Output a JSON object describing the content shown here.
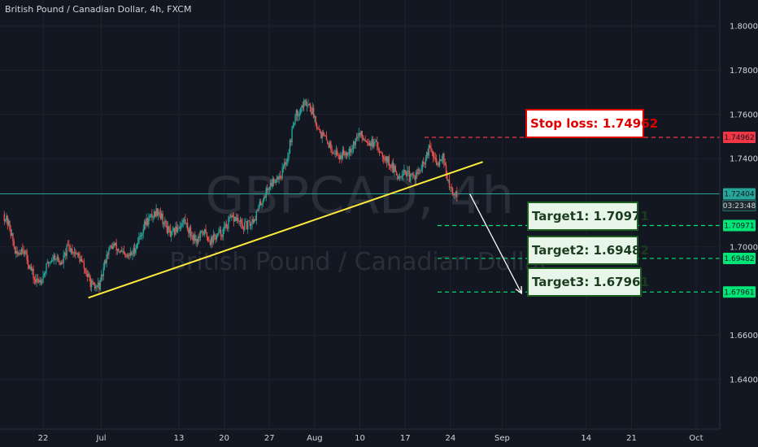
{
  "chart_data": {
    "type": "candlestick",
    "title": "British Pound / Canadian Dollar, 4h, FXCM",
    "watermark": {
      "symbol": "GBPCAD, 4h",
      "name": "British Pound / Canadian Dollar"
    },
    "ylim": [
      1.62,
      1.81
    ],
    "y_ticks": [
      {
        "value": 1.8,
        "label": "1.80000"
      },
      {
        "value": 1.78,
        "label": "1.78000"
      },
      {
        "value": 1.76,
        "label": "1.76000"
      },
      {
        "value": 1.74,
        "label": "1.74000"
      },
      {
        "value": 1.7,
        "label": "1.70000"
      },
      {
        "value": 1.66,
        "label": "1.66000"
      },
      {
        "value": 1.64,
        "label": "1.64000"
      }
    ],
    "x_ticks": [
      {
        "date": "2020-06-22",
        "label": "22"
      },
      {
        "date": "2020-07-01",
        "label": "Jul"
      },
      {
        "date": "2020-07-13",
        "label": "13"
      },
      {
        "date": "2020-07-20",
        "label": "20"
      },
      {
        "date": "2020-07-27",
        "label": "27"
      },
      {
        "date": "2020-08-03",
        "label": "Aug"
      },
      {
        "date": "2020-08-10",
        "label": "10"
      },
      {
        "date": "2020-08-17",
        "label": "17"
      },
      {
        "date": "2020-08-24",
        "label": "24"
      },
      {
        "date": "2020-09-01",
        "label": "Sep"
      },
      {
        "date": "2020-09-14",
        "label": "14"
      },
      {
        "date": "2020-09-21",
        "label": "21"
      },
      {
        "date": "2020-10-01",
        "label": "Oct"
      }
    ],
    "price_path": [
      [
        "2020-06-16",
        1.715
      ],
      [
        "2020-06-17",
        1.709
      ],
      [
        "2020-06-18",
        1.696
      ],
      [
        "2020-06-19",
        1.7
      ],
      [
        "2020-06-20",
        1.692
      ],
      [
        "2020-06-21",
        1.684
      ],
      [
        "2020-06-22",
        1.686
      ],
      [
        "2020-06-23",
        1.693
      ],
      [
        "2020-06-24",
        1.696
      ],
      [
        "2020-06-25",
        1.692
      ],
      [
        "2020-06-26",
        1.7
      ],
      [
        "2020-06-27",
        1.698
      ],
      [
        "2020-06-28",
        1.694
      ],
      [
        "2020-06-29",
        1.687
      ],
      [
        "2020-06-30",
        1.681
      ],
      [
        "2020-07-01",
        1.683
      ],
      [
        "2020-07-02",
        1.697
      ],
      [
        "2020-07-03",
        1.701
      ],
      [
        "2020-07-04",
        1.698
      ],
      [
        "2020-07-05",
        1.695
      ],
      [
        "2020-07-06",
        1.697
      ],
      [
        "2020-07-07",
        1.704
      ],
      [
        "2020-07-08",
        1.711
      ],
      [
        "2020-07-09",
        1.714
      ],
      [
        "2020-07-10",
        1.717
      ],
      [
        "2020-07-11",
        1.71
      ],
      [
        "2020-07-12",
        1.705
      ],
      [
        "2020-07-13",
        1.709
      ],
      [
        "2020-07-14",
        1.712
      ],
      [
        "2020-07-15",
        1.706
      ],
      [
        "2020-07-16",
        1.703
      ],
      [
        "2020-07-17",
        1.707
      ],
      [
        "2020-07-18",
        1.703
      ],
      [
        "2020-07-19",
        1.705
      ],
      [
        "2020-07-20",
        1.707
      ],
      [
        "2020-07-21",
        1.712
      ],
      [
        "2020-07-22",
        1.713
      ],
      [
        "2020-07-23",
        1.709
      ],
      [
        "2020-07-24",
        1.71
      ],
      [
        "2020-07-25",
        1.714
      ],
      [
        "2020-07-26",
        1.721
      ],
      [
        "2020-07-27",
        1.727
      ],
      [
        "2020-07-28",
        1.731
      ],
      [
        "2020-07-29",
        1.733
      ],
      [
        "2020-07-30",
        1.741
      ],
      [
        "2020-07-31",
        1.758
      ],
      [
        "2020-08-01",
        1.763
      ],
      [
        "2020-08-02",
        1.766
      ],
      [
        "2020-08-03",
        1.76
      ],
      [
        "2020-08-04",
        1.752
      ],
      [
        "2020-08-05",
        1.748
      ],
      [
        "2020-08-06",
        1.744
      ],
      [
        "2020-08-07",
        1.741
      ],
      [
        "2020-08-08",
        1.743
      ],
      [
        "2020-08-09",
        1.746
      ],
      [
        "2020-08-10",
        1.751
      ],
      [
        "2020-08-11",
        1.749
      ],
      [
        "2020-08-12",
        1.747
      ],
      [
        "2020-08-13",
        1.745
      ],
      [
        "2020-08-14",
        1.741
      ],
      [
        "2020-08-15",
        1.737
      ],
      [
        "2020-08-16",
        1.732
      ],
      [
        "2020-08-17",
        1.735
      ],
      [
        "2020-08-18",
        1.731
      ],
      [
        "2020-08-19",
        1.733
      ],
      [
        "2020-08-20",
        1.737
      ],
      [
        "2020-08-21",
        1.745
      ],
      [
        "2020-08-22",
        1.737
      ],
      [
        "2020-08-23",
        1.742
      ],
      [
        "2020-08-24",
        1.726
      ],
      [
        "2020-08-25",
        1.724
      ]
    ],
    "trendline": {
      "start": [
        "2020-06-29",
        1.677
      ],
      "end": [
        "2020-08-29",
        1.7385
      ],
      "color": "#ffeb3b"
    },
    "projection_arrow": {
      "start": [
        "2020-08-27",
        1.724
      ],
      "end": [
        "2020-09-04",
        1.679
      ],
      "color": "#ffffff"
    },
    "current_price": {
      "value": 1.72404,
      "label": "1.72404",
      "countdown": "03:23:48",
      "color": "#26a69a"
    },
    "levels": [
      {
        "value": 1.74962,
        "label": "1.74962",
        "box_label": "Stop loss: 1.74962",
        "color": "#f23645",
        "start_date": "2020-08-20"
      },
      {
        "value": 1.70971,
        "label": "1.70971",
        "box_label": "Target1: 1.70971",
        "color": "#00e676",
        "start_date": "2020-08-22"
      },
      {
        "value": 1.69482,
        "label": "1.69482",
        "box_label": "Target2: 1.69482",
        "color": "#00e676",
        "start_date": "2020-08-22"
      },
      {
        "value": 1.67961,
        "label": "1.67961",
        "box_label": "Target3:  1.67961",
        "color": "#00e676",
        "start_date": "2020-08-22"
      }
    ],
    "colors": {
      "background": "#131722",
      "up": "#26a69a",
      "down": "#ef5350",
      "grid": "#1e222d",
      "text": "#d1d4dc"
    },
    "grid": true,
    "legend": "none"
  }
}
